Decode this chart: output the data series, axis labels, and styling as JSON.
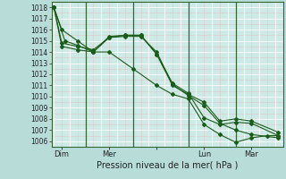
{
  "xlabel": "Pression niveau de la mer( hPa )",
  "background_color": "#cce8e0",
  "plot_bg_color": "#d8f0e8",
  "grid_color_major": "#aaaaaa",
  "grid_color_minor": "#e8c8c8",
  "line_color": "#1a5c1a",
  "vline_color": "#336633",
  "ylim": [
    1005.5,
    1018.5
  ],
  "yticks": [
    1006,
    1007,
    1008,
    1009,
    1010,
    1011,
    1012,
    1013,
    1014,
    1015,
    1016,
    1017,
    1018
  ],
  "xlim_min": -0.15,
  "xlim_max": 14.5,
  "xtick_positions": [
    0.5,
    3.5,
    6.5,
    9.5,
    12.5
  ],
  "xtick_labels": [
    "Dim",
    "Mer",
    "",
    "Lun",
    "Mar"
  ],
  "vline_positions": [
    2,
    5,
    8.5,
    11.5
  ],
  "line1_x": [
    0,
    0.5,
    1.5,
    2.5,
    3.5,
    5,
    6.5,
    7.5,
    8.5,
    9.5,
    10.5,
    11.5,
    12.5,
    13.5,
    14.2
  ],
  "line1_y": [
    1018.0,
    1016.0,
    1015.0,
    1014.0,
    1014.0,
    1012.5,
    1011.0,
    1010.2,
    1009.8,
    1007.5,
    1006.6,
    1005.9,
    1006.3,
    1006.5,
    1006.5
  ],
  "line2_x": [
    0,
    0.5,
    1.5,
    2.5,
    3.5,
    4.5,
    5.5,
    6.5,
    7.5,
    8.5,
    9.5,
    10.5,
    11.5,
    12.5,
    14.2
  ],
  "line2_y": [
    1018.0,
    1014.8,
    1014.5,
    1014.2,
    1015.3,
    1015.5,
    1015.5,
    1013.8,
    1011.2,
    1010.3,
    1008.1,
    1007.5,
    1007.7,
    1007.6,
    1006.5
  ],
  "line3_x": [
    0,
    0.5,
    1.5,
    2.5,
    3.5,
    4.5,
    5.5,
    6.5,
    7.5,
    8.5,
    9.5,
    10.5,
    11.5,
    12.5,
    14.2
  ],
  "line3_y": [
    1018.0,
    1014.5,
    1014.2,
    1014.0,
    1015.4,
    1015.5,
    1015.5,
    1013.8,
    1011.0,
    1010.2,
    1009.5,
    1007.8,
    1008.0,
    1007.8,
    1006.8
  ],
  "line4_x": [
    0,
    0.7,
    1.5,
    2.5,
    3.5,
    4.5,
    5.5,
    6.5,
    7.5,
    8.5,
    9.5,
    10.5,
    11.5,
    12.5,
    14.2
  ],
  "line4_y": [
    1018.0,
    1015.0,
    1014.6,
    1014.0,
    1015.3,
    1015.4,
    1015.4,
    1014.0,
    1011.1,
    1010.1,
    1009.2,
    1007.6,
    1007.0,
    1006.6,
    1006.3
  ],
  "xlabel_fontsize": 7,
  "ytick_fontsize": 5.5,
  "xtick_fontsize": 6
}
